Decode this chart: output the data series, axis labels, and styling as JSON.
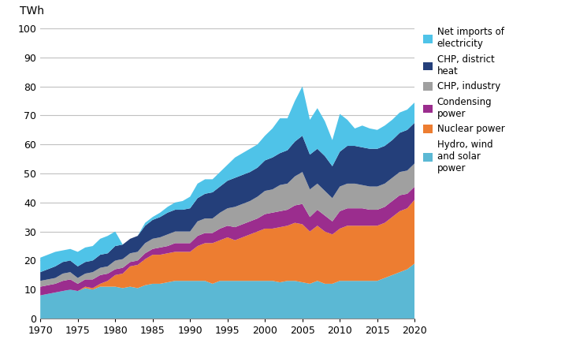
{
  "years": [
    1970,
    1971,
    1972,
    1973,
    1974,
    1975,
    1976,
    1977,
    1978,
    1979,
    1980,
    1981,
    1982,
    1983,
    1984,
    1985,
    1986,
    1987,
    1988,
    1989,
    1990,
    1991,
    1992,
    1993,
    1994,
    1995,
    1996,
    1997,
    1998,
    1999,
    2000,
    2001,
    2002,
    2003,
    2004,
    2005,
    2006,
    2007,
    2008,
    2009,
    2010,
    2011,
    2012,
    2013,
    2014,
    2015,
    2016,
    2017,
    2018,
    2019,
    2020
  ],
  "hydro_wind_solar": [
    8.0,
    8.5,
    9.0,
    9.5,
    10.0,
    9.5,
    10.5,
    10.0,
    11.0,
    11.0,
    11.0,
    10.5,
    11.0,
    10.5,
    11.5,
    12.0,
    12.0,
    12.5,
    13.0,
    13.0,
    13.0,
    13.0,
    13.0,
    12.0,
    13.0,
    13.0,
    13.0,
    13.0,
    13.0,
    13.0,
    13.0,
    13.0,
    12.5,
    13.0,
    13.0,
    12.5,
    12.0,
    13.0,
    12.0,
    12.0,
    13.0,
    13.0,
    13.0,
    13.0,
    13.0,
    13.0,
    14.0,
    15.0,
    16.0,
    17.0,
    19.0
  ],
  "nuclear": [
    0.0,
    0.0,
    0.0,
    0.0,
    0.0,
    0.0,
    0.5,
    0.5,
    1.0,
    2.0,
    4.0,
    5.0,
    7.0,
    8.0,
    9.0,
    10.0,
    10.0,
    10.0,
    10.0,
    10.0,
    10.0,
    12.0,
    13.0,
    14.0,
    14.0,
    15.0,
    14.0,
    15.0,
    16.0,
    17.0,
    18.0,
    18.0,
    19.0,
    19.0,
    20.0,
    20.0,
    18.0,
    19.0,
    18.0,
    17.0,
    18.0,
    19.0,
    19.0,
    19.0,
    19.0,
    19.0,
    19.0,
    20.0,
    21.0,
    21.0,
    22.0
  ],
  "condensing": [
    3.0,
    3.0,
    3.0,
    3.5,
    3.5,
    2.5,
    2.5,
    3.0,
    3.0,
    2.5,
    2.0,
    2.0,
    1.5,
    1.5,
    2.0,
    2.0,
    2.5,
    2.5,
    3.0,
    3.0,
    3.0,
    3.5,
    3.5,
    3.5,
    4.0,
    4.0,
    4.5,
    4.5,
    4.5,
    4.5,
    5.0,
    5.5,
    5.5,
    5.5,
    6.0,
    7.0,
    5.0,
    5.5,
    5.5,
    4.5,
    6.0,
    6.0,
    6.0,
    6.0,
    5.5,
    5.5,
    5.5,
    5.5,
    5.5,
    5.0,
    4.5
  ],
  "chp_industry": [
    2.0,
    2.0,
    2.0,
    2.5,
    2.5,
    2.0,
    2.0,
    2.5,
    2.5,
    2.5,
    3.0,
    3.0,
    3.0,
    3.0,
    3.5,
    3.5,
    3.5,
    4.0,
    4.0,
    4.0,
    4.0,
    5.0,
    5.0,
    5.0,
    5.5,
    6.0,
    7.0,
    7.0,
    7.0,
    7.5,
    8.0,
    8.0,
    9.0,
    9.0,
    10.0,
    11.0,
    9.5,
    9.0,
    8.5,
    8.0,
    8.5,
    8.5,
    8.5,
    8.0,
    8.0,
    8.0,
    8.0,
    8.0,
    8.0,
    8.0,
    8.0
  ],
  "chp_district": [
    3.0,
    3.5,
    4.0,
    4.0,
    4.0,
    4.0,
    4.0,
    4.0,
    4.5,
    4.5,
    5.0,
    5.0,
    5.0,
    5.5,
    6.0,
    6.5,
    7.0,
    7.5,
    7.5,
    7.5,
    8.0,
    8.0,
    8.5,
    9.0,
    9.0,
    9.5,
    10.0,
    10.0,
    10.0,
    10.0,
    10.5,
    11.0,
    11.0,
    11.5,
    12.0,
    12.5,
    12.0,
    12.0,
    12.0,
    11.0,
    12.0,
    13.0,
    13.0,
    13.0,
    13.0,
    13.0,
    13.0,
    13.0,
    13.5,
    14.0,
    14.0
  ],
  "net_imports": [
    5.0,
    5.0,
    5.0,
    4.0,
    4.0,
    5.0,
    5.0,
    5.0,
    5.5,
    6.0,
    5.0,
    0.0,
    0.0,
    0.0,
    1.0,
    1.0,
    1.5,
    2.0,
    2.5,
    3.0,
    4.0,
    5.0,
    5.0,
    4.5,
    5.0,
    5.5,
    7.0,
    7.5,
    8.0,
    8.0,
    8.5,
    10.0,
    12.0,
    11.0,
    14.0,
    17.0,
    12.0,
    14.0,
    12.0,
    9.0,
    13.0,
    9.0,
    6.0,
    7.5,
    7.0,
    6.5,
    7.0,
    7.0,
    7.0,
    7.0,
    7.0
  ],
  "colors": {
    "hydro_wind_solar": "#5BB8D4",
    "nuclear": "#ED7D31",
    "condensing": "#9B2D8E",
    "chp_industry": "#A0A0A0",
    "chp_district": "#243F7A",
    "net_imports": "#4FC3E8"
  },
  "legend_labels": {
    "net_imports": "Net imports of\nelectricity",
    "chp_district": "CHP, district\nheat",
    "chp_industry": "CHP, industry",
    "condensing": "Condensing\npower",
    "nuclear": "Nuclear power",
    "hydro_wind_solar": "Hydro, wind\nand solar\npower"
  },
  "ylabel": "TWh",
  "ylim": [
    0,
    100
  ],
  "yticks": [
    0,
    10,
    20,
    30,
    40,
    50,
    60,
    70,
    80,
    90,
    100
  ],
  "xticks": [
    1970,
    1975,
    1980,
    1985,
    1990,
    1995,
    2000,
    2005,
    2010,
    2015,
    2020
  ],
  "grid_color": "#C0C0C0",
  "spine_color": "#888888"
}
